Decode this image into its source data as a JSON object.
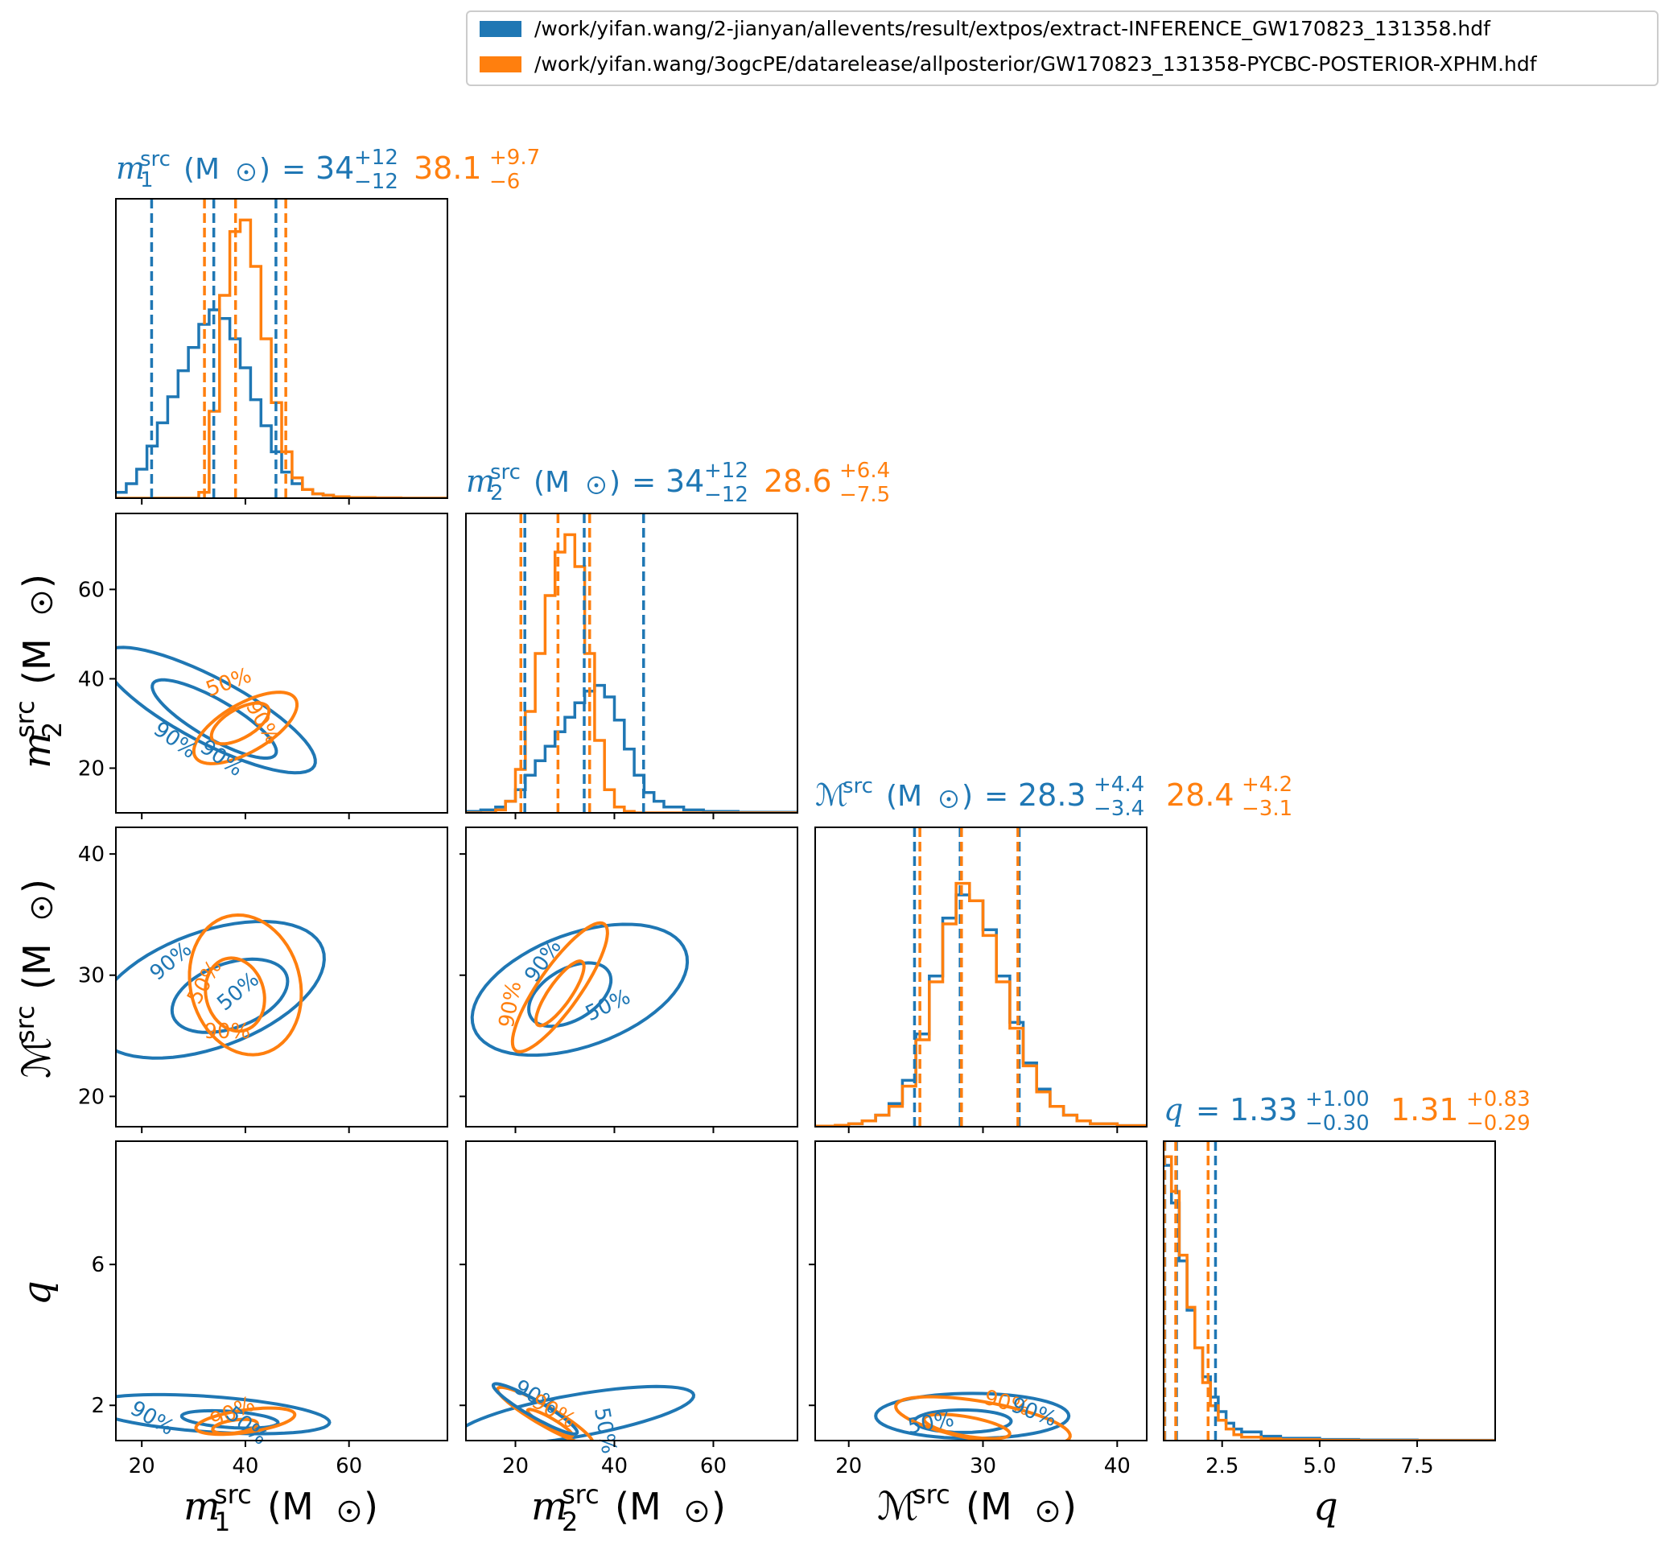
{
  "legend": {
    "placement": "top-right",
    "entries": [
      {
        "label": "/work/yifan.wang/2-jianyan/allevents/result/extpos/extract-INFERENCE_GW170823_131358.hdf",
        "color": "#1f77b4"
      },
      {
        "label": "/work/yifan.wang/3ogcPE/datarelease/allposterior/GW170823_131358-PYCBC-POSTERIOR-XPHM.hdf",
        "color": "#ff7f0e"
      }
    ]
  },
  "colors": {
    "blue": "#1f77b4",
    "orange": "#ff7f0e"
  },
  "parameters": [
    {
      "key": "m1",
      "title_sym": "m",
      "title_sub": "1",
      "title_sup": "src",
      "unit": "(M",
      "blue": {
        "median": "34",
        "plus": "+12",
        "minus": "−12"
      },
      "orange": {
        "median": "38.1",
        "plus": "+9.7",
        "minus": "−6"
      }
    },
    {
      "key": "m2",
      "title_sym": "m",
      "title_sub": "2",
      "title_sup": "src",
      "unit": "(M",
      "blue": {
        "median": "34",
        "plus": "+12",
        "minus": "−12"
      },
      "orange": {
        "median": "28.6",
        "plus": "+6.4",
        "minus": "−7.5"
      }
    },
    {
      "key": "mc",
      "title_sym": "ℳ",
      "title_sub": "",
      "title_sup": "src",
      "unit": "(M",
      "blue": {
        "median": "28.3",
        "plus": "+4.4",
        "minus": "−3.4"
      },
      "orange": {
        "median": "28.4",
        "plus": "+4.2",
        "minus": "−3.1"
      }
    },
    {
      "key": "q",
      "title_sym": "q",
      "title_sub": "",
      "title_sup": "",
      "unit": "",
      "blue": {
        "median": "1.33",
        "plus": "+1.00",
        "minus": "−0.30"
      },
      "orange": {
        "median": "1.31",
        "plus": "+0.83",
        "minus": "−0.29"
      }
    }
  ],
  "chart_data": {
    "type": "corner",
    "axes": {
      "m1": {
        "range": [
          15,
          79
        ],
        "ticks": [
          "20",
          "40",
          "60"
        ],
        "tick_values": [
          20,
          40,
          60
        ]
      },
      "m2": {
        "range": [
          10,
          77
        ],
        "ticks": [
          "20",
          "40",
          "60"
        ],
        "tick_values": [
          20,
          40,
          60
        ]
      },
      "mc": {
        "range": [
          17.5,
          42.2
        ],
        "ticks": [
          "20",
          "30",
          "40"
        ],
        "tick_values": [
          20,
          30,
          40
        ]
      },
      "q": {
        "range": [
          1.0,
          9.5
        ],
        "ticks": [
          "2",
          "6"
        ],
        "tick_values": [
          2,
          6
        ],
        "xticks": [
          "2.5",
          "5.0",
          "7.5"
        ],
        "xtick_values": [
          2.5,
          5.0,
          7.5
        ]
      }
    },
    "series": [
      {
        "name": "/work/yifan.wang/2-jianyan/allevents/result/extpos/extract-INFERENCE_GW170823_131358.hdf",
        "color": "#1f77b4",
        "quantiles": {
          "m1": [
            21.9,
            33.9,
            45.9
          ],
          "m2": [
            21.9,
            33.9,
            45.9
          ],
          "mc": [
            24.9,
            28.3,
            32.7
          ],
          "q": [
            1.03,
            1.33,
            2.33
          ]
        }
      },
      {
        "name": "/work/yifan.wang/3ogcPE/datarelease/allposterior/GW170823_131358-PYCBC-POSTERIOR-XPHM.hdf",
        "color": "#ff7f0e",
        "quantiles": {
          "m1": [
            32.1,
            38.1,
            47.8
          ],
          "m2": [
            21.1,
            28.6,
            35.0
          ],
          "mc": [
            25.3,
            28.4,
            32.6
          ],
          "q": [
            1.02,
            1.31,
            2.14
          ]
        }
      }
    ],
    "histograms": {
      "m1": {
        "x": [
          15,
          17,
          19,
          21,
          23,
          25,
          27,
          29,
          31,
          33,
          35,
          37,
          39,
          41,
          43,
          45,
          47,
          49,
          51,
          53,
          55,
          57,
          60,
          65,
          70,
          79
        ],
        "blue": [
          0.02,
          0.05,
          0.1,
          0.18,
          0.26,
          0.35,
          0.44,
          0.52,
          0.6,
          0.65,
          0.62,
          0.55,
          0.45,
          0.34,
          0.25,
          0.16,
          0.09,
          0.05,
          0.03,
          0.015,
          0.01,
          0.005,
          0.002,
          0.001,
          0.0,
          0.0
        ],
        "orange": [
          0,
          0,
          0,
          0,
          0,
          0,
          0,
          0,
          0.02,
          0.3,
          0.7,
          0.92,
          0.96,
          0.8,
          0.55,
          0.33,
          0.16,
          0.07,
          0.03,
          0.015,
          0.01,
          0.005,
          0.002,
          0.001,
          0.0,
          0.0
        ]
      },
      "m2": {
        "x": [
          10,
          13,
          16,
          18,
          20,
          22,
          24,
          26,
          28,
          30,
          32,
          34,
          36,
          38,
          40,
          42,
          44,
          46,
          48,
          50,
          54,
          58,
          65,
          77
        ],
        "blue": [
          0.005,
          0.01,
          0.02,
          0.04,
          0.08,
          0.13,
          0.18,
          0.23,
          0.28,
          0.33,
          0.38,
          0.42,
          0.44,
          0.4,
          0.32,
          0.22,
          0.13,
          0.07,
          0.04,
          0.02,
          0.01,
          0.005,
          0.002,
          0.0
        ],
        "orange": [
          0,
          0,
          0.01,
          0.04,
          0.15,
          0.35,
          0.55,
          0.75,
          0.9,
          0.96,
          0.85,
          0.55,
          0.25,
          0.08,
          0.02,
          0.005,
          0,
          0,
          0,
          0,
          0,
          0,
          0,
          0
        ]
      },
      "mc": {
        "x": [
          17.5,
          19,
          20,
          21,
          22,
          23,
          24,
          25,
          26,
          27,
          28,
          29,
          30,
          31,
          32,
          33,
          34,
          35,
          36,
          37,
          38,
          40,
          42.2
        ],
        "blue": [
          0.002,
          0.005,
          0.01,
          0.02,
          0.04,
          0.08,
          0.16,
          0.32,
          0.52,
          0.72,
          0.8,
          0.78,
          0.68,
          0.52,
          0.36,
          0.22,
          0.13,
          0.07,
          0.04,
          0.02,
          0.01,
          0.004,
          0.001
        ],
        "orange": [
          0.002,
          0.005,
          0.01,
          0.02,
          0.04,
          0.07,
          0.14,
          0.3,
          0.5,
          0.7,
          0.84,
          0.78,
          0.66,
          0.5,
          0.34,
          0.21,
          0.12,
          0.07,
          0.04,
          0.02,
          0.01,
          0.004,
          0.001
        ]
      },
      "q": {
        "x": [
          1.0,
          1.2,
          1.4,
          1.6,
          1.8,
          2.0,
          2.2,
          2.4,
          2.6,
          2.8,
          3.0,
          3.5,
          4.0,
          5.0,
          6.0,
          7.5,
          9.5
        ],
        "blue": [
          0.95,
          0.82,
          0.62,
          0.45,
          0.32,
          0.22,
          0.15,
          0.1,
          0.06,
          0.04,
          0.03,
          0.015,
          0.008,
          0.004,
          0.002,
          0.001,
          0.0
        ],
        "orange": [
          0.98,
          0.86,
          0.64,
          0.46,
          0.32,
          0.2,
          0.12,
          0.07,
          0.04,
          0.02,
          0.012,
          0.006,
          0.003,
          0.001,
          0.0,
          0.0,
          0.0
        ]
      }
    },
    "contour_labels": [
      "50%",
      "90%"
    ]
  }
}
